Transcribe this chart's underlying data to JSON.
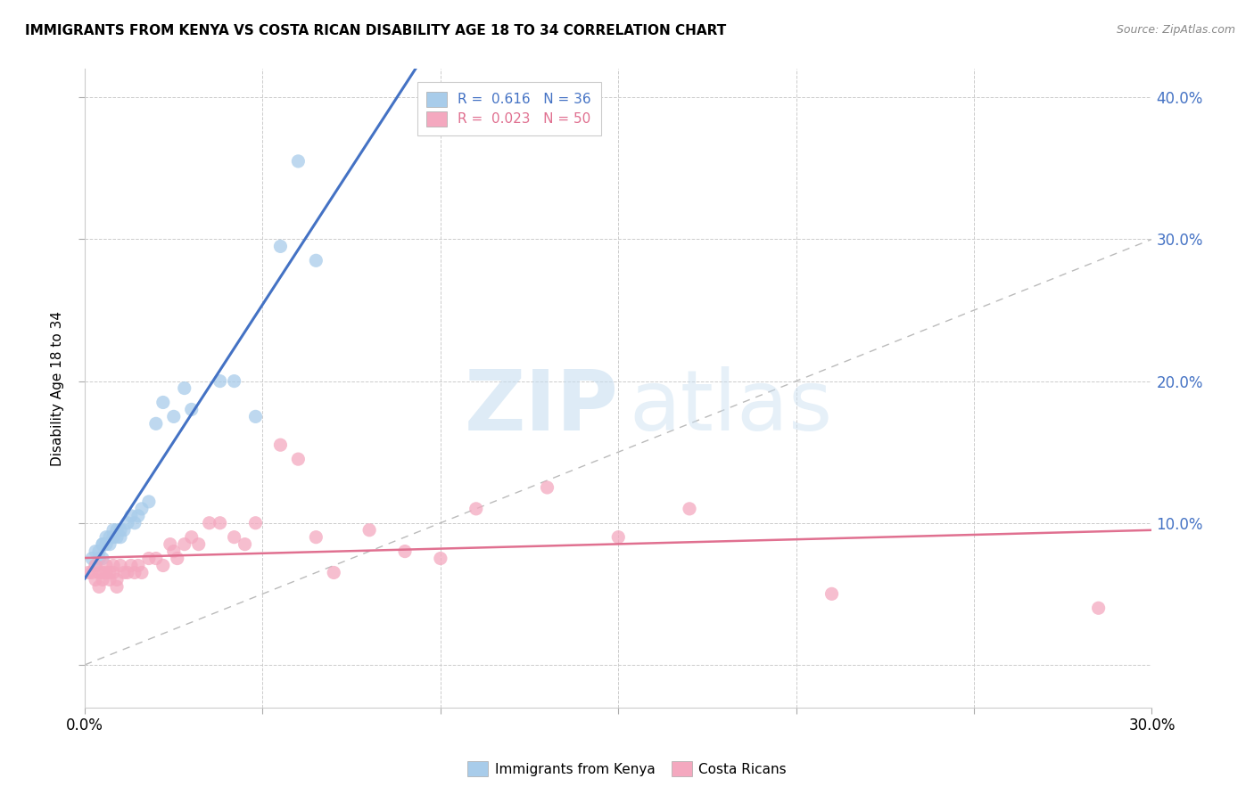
{
  "title": "IMMIGRANTS FROM KENYA VS COSTA RICAN DISABILITY AGE 18 TO 34 CORRELATION CHART",
  "source": "Source: ZipAtlas.com",
  "ylabel": "Disability Age 18 to 34",
  "xlim": [
    0.0,
    0.3
  ],
  "ylim": [
    -0.03,
    0.42
  ],
  "blue_R": 0.616,
  "blue_N": 36,
  "pink_R": 0.023,
  "pink_N": 50,
  "blue_color": "#A8CCEA",
  "pink_color": "#F4A8BF",
  "blue_line_color": "#4472C4",
  "pink_line_color": "#E07090",
  "diagonal_color": "#BBBBBB",
  "watermark_zip": "ZIP",
  "watermark_atlas": "atlas",
  "blue_scatter_x": [
    0.002,
    0.003,
    0.003,
    0.004,
    0.004,
    0.005,
    0.005,
    0.005,
    0.006,
    0.006,
    0.007,
    0.007,
    0.008,
    0.008,
    0.009,
    0.009,
    0.01,
    0.01,
    0.011,
    0.012,
    0.013,
    0.014,
    0.015,
    0.016,
    0.018,
    0.02,
    0.022,
    0.025,
    0.028,
    0.03,
    0.038,
    0.042,
    0.048,
    0.055,
    0.06,
    0.065
  ],
  "blue_scatter_y": [
    0.075,
    0.07,
    0.08,
    0.075,
    0.08,
    0.085,
    0.075,
    0.085,
    0.085,
    0.09,
    0.09,
    0.085,
    0.09,
    0.095,
    0.09,
    0.095,
    0.095,
    0.09,
    0.095,
    0.1,
    0.105,
    0.1,
    0.105,
    0.11,
    0.115,
    0.17,
    0.185,
    0.175,
    0.195,
    0.18,
    0.2,
    0.2,
    0.175,
    0.295,
    0.355,
    0.285
  ],
  "pink_scatter_x": [
    0.001,
    0.002,
    0.003,
    0.003,
    0.004,
    0.004,
    0.005,
    0.005,
    0.006,
    0.006,
    0.007,
    0.007,
    0.008,
    0.008,
    0.009,
    0.009,
    0.01,
    0.011,
    0.012,
    0.013,
    0.014,
    0.015,
    0.016,
    0.018,
    0.02,
    0.022,
    0.024,
    0.025,
    0.026,
    0.028,
    0.03,
    0.032,
    0.035,
    0.038,
    0.042,
    0.045,
    0.048,
    0.055,
    0.06,
    0.065,
    0.07,
    0.08,
    0.09,
    0.1,
    0.11,
    0.13,
    0.15,
    0.17,
    0.21,
    0.285
  ],
  "pink_scatter_y": [
    0.065,
    0.065,
    0.06,
    0.07,
    0.065,
    0.055,
    0.065,
    0.06,
    0.07,
    0.065,
    0.06,
    0.065,
    0.07,
    0.065,
    0.06,
    0.055,
    0.07,
    0.065,
    0.065,
    0.07,
    0.065,
    0.07,
    0.065,
    0.075,
    0.075,
    0.07,
    0.085,
    0.08,
    0.075,
    0.085,
    0.09,
    0.085,
    0.1,
    0.1,
    0.09,
    0.085,
    0.1,
    0.155,
    0.145,
    0.09,
    0.065,
    0.095,
    0.08,
    0.075,
    0.11,
    0.125,
    0.09,
    0.11,
    0.05,
    0.04
  ],
  "background_color": "#FFFFFF",
  "grid_color": "#CCCCCC"
}
